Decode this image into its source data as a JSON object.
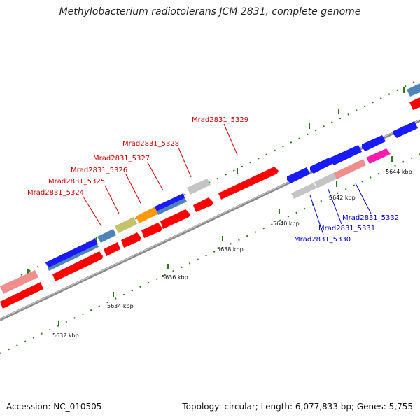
{
  "title": "Methylobacterium radiotolerans JCM 2831, complete genome",
  "footer": {
    "accession": "Accession: NC_010505",
    "summary": "Topology: circular; Length: 6,077,833 bp; Genes: 5,755"
  },
  "ticks": [
    "5632 kbp",
    "5634 kbp",
    "5636 kbp",
    "5638 kbp",
    "5640 kbp",
    "5642 kbp",
    "5644 kbp"
  ],
  "labels_plus": [
    "Mrad2831_5324",
    "Mrad2831_5325",
    "Mrad2831_5326",
    "Mrad2831_5327",
    "Mrad2831_5328",
    "Mrad2831_5329"
  ],
  "labels_minus": [
    "Mrad2831_5330",
    "Mrad2831_5331",
    "Mrad2831_5332"
  ],
  "colors": {
    "backbone": "#8a8a8a",
    "red": "#ff0000",
    "blue": "#1a1aff",
    "steel": "#4f84b8",
    "pink": "#f08d8d",
    "gray": "#c4c4c4",
    "olive": "#c4c26a",
    "orange": "#ff9900",
    "magenta": "#ff1ab0",
    "tick_green": "#2a7a1a",
    "label_red": "#cc0000",
    "label_blue": "#0000cc"
  }
}
